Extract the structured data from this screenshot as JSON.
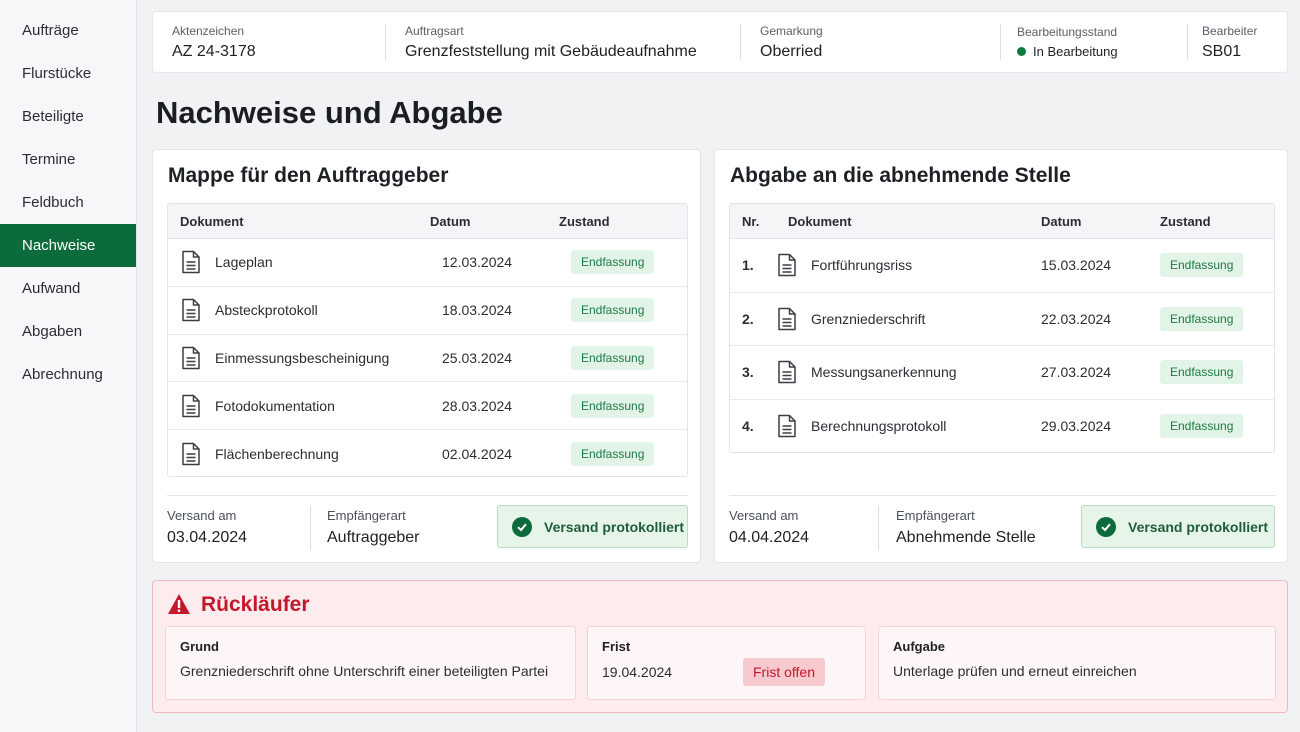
{
  "sidebar": {
    "items": [
      {
        "label": "Aufträge",
        "active": false
      },
      {
        "label": "Flurstücke",
        "active": false
      },
      {
        "label": "Beteiligte",
        "active": false
      },
      {
        "label": "Termine",
        "active": false
      },
      {
        "label": "Feldbuch",
        "active": false
      },
      {
        "label": "Nachweise",
        "active": true
      },
      {
        "label": "Aufwand",
        "active": false
      },
      {
        "label": "Abgaben",
        "active": false
      },
      {
        "label": "Abrechnung",
        "active": false
      }
    ]
  },
  "header": {
    "aktenzeichen_label": "Aktenzeichen",
    "aktenzeichen": "AZ 24-3178",
    "auftragsart_label": "Auftragsart",
    "auftragsart": "Grenzfeststellung mit Gebäudeaufnahme",
    "gemarkung_label": "Gemarkung",
    "gemarkung": "Oberried",
    "status_label": "Bearbeitungsstand",
    "status": "In Bearbeitung",
    "status_color": "#0b7a3e",
    "bearbeiter_label": "Bearbeiter",
    "bearbeiter": "SB01"
  },
  "page_title": "Nachweise und Abgabe",
  "mappe": {
    "title": "Mappe für den Auftraggeber",
    "columns": {
      "dokument": "Dokument",
      "datum": "Datum",
      "zustand": "Zustand"
    },
    "rows": [
      {
        "dokument": "Lageplan",
        "datum": "12.03.2024",
        "zustand": "Endfassung"
      },
      {
        "dokument": "Absteckprotokoll",
        "datum": "18.03.2024",
        "zustand": "Endfassung"
      },
      {
        "dokument": "Einmessungsbescheinigung",
        "datum": "25.03.2024",
        "zustand": "Endfassung"
      },
      {
        "dokument": "Fotodokumentation",
        "datum": "28.03.2024",
        "zustand": "Endfassung"
      },
      {
        "dokument": "Flächenberechnung",
        "datum": "02.04.2024",
        "zustand": "Endfassung"
      }
    ],
    "versand_label": "Versand am",
    "versand": "03.04.2024",
    "empfaenger_label": "Empfängerart",
    "empfaenger": "Auftraggeber",
    "protocol_label": "Versand protokolliert"
  },
  "abgabe": {
    "title": "Abgabe an die abnehmende Stelle",
    "columns": {
      "nr": "Nr.",
      "dokument": "Dokument",
      "datum": "Datum",
      "zustand": "Zustand"
    },
    "rows": [
      {
        "nr": "1.",
        "dokument": "Fortführungsriss",
        "datum": "15.03.2024",
        "zustand": "Endfassung"
      },
      {
        "nr": "2.",
        "dokument": "Grenzniederschrift",
        "datum": "22.03.2024",
        "zustand": "Endfassung"
      },
      {
        "nr": "3.",
        "dokument": "Messungsanerkennung",
        "datum": "27.03.2024",
        "zustand": "Endfassung"
      },
      {
        "nr": "4.",
        "dokument": "Berechnungsprotokoll",
        "datum": "29.03.2024",
        "zustand": "Endfassung"
      }
    ],
    "versand_label": "Versand am",
    "versand": "04.04.2024",
    "empfaenger_label": "Empfängerart",
    "empfaenger": "Abnehmende Stelle",
    "protocol_label": "Versand protokolliert"
  },
  "ruecklaeufer": {
    "title": "Rückläufer",
    "grund_label": "Grund",
    "grund": "Grenzniederschrift ohne Unterschrift einer beteiligten Partei",
    "frist_label": "Frist",
    "frist": "19.04.2024",
    "frist_badge": "Frist offen",
    "aufgabe_label": "Aufgabe",
    "aufgabe": "Unterlage prüfen und erneut einreichen"
  },
  "colors": {
    "accent": "#0b6b3a",
    "badge_bg": "#e2f3e7",
    "alert_red": "#c4172b",
    "alert_bg": "#fdecee"
  },
  "icons": {
    "document": "document-icon",
    "check": "check-circle-icon",
    "warning": "warning-triangle-icon",
    "status_dot": "status-dot-icon"
  }
}
